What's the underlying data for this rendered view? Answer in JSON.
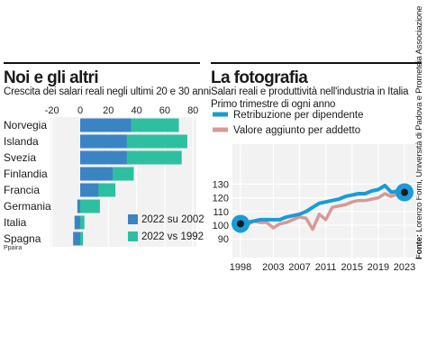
{
  "left_panel": {
    "title": "Noi e gli altri",
    "subtitle": "Crescita dei salari reali negli ultimi 20 e 30 anni",
    "credit": "Ppaira"
  },
  "right_panel": {
    "title": "La fotografia",
    "subtitle_line1": "Salari reali e produttività nell'industria in Italia",
    "subtitle_line2": "Primo trimestre di ogni anno",
    "source_label": "Fonte:",
    "source_text": " Lorenzo Forni, Università di Padova e Prometeia Associazione"
  },
  "colors": {
    "bar_20y": "#3a84c4",
    "bar_30y": "#2ebfa0",
    "wages_line": "#1a9bd7",
    "productivity_line": "#d89898",
    "panel_bg": "#f2f2f2",
    "grid": "#ffffff",
    "marker_fill": "#1a1a1a"
  },
  "chart_data": [
    {
      "type": "bar",
      "orientation": "horizontal",
      "categories": [
        "Norvegia",
        "Islanda",
        "Svezia",
        "Finlandia",
        "Francia",
        "Germania",
        "Italia",
        "Spagna"
      ],
      "series": [
        {
          "name": "2022 su 2002",
          "values": [
            36,
            33,
            33,
            23,
            13,
            -2,
            -4,
            -5
          ]
        },
        {
          "name": "2022 vs 1992",
          "values": [
            70,
            76,
            72,
            38,
            25,
            14,
            3,
            2
          ]
        }
      ],
      "xlim": [
        -20,
        80
      ],
      "xticks": [
        "-20",
        "0",
        "20",
        "40",
        "60",
        "80"
      ],
      "legend_position": "bottom-right",
      "grid": true
    },
    {
      "type": "line",
      "x": [
        1998,
        1999,
        2000,
        2001,
        2002,
        2003,
        2004,
        2005,
        2006,
        2007,
        2008,
        2009,
        2010,
        2011,
        2012,
        2013,
        2014,
        2015,
        2016,
        2017,
        2018,
        2019,
        2020,
        2021,
        2022,
        2023
      ],
      "series": [
        {
          "name": "Retribuzione per dipendente",
          "values": [
            101,
            102,
            103,
            104,
            104,
            104,
            104,
            106,
            107,
            108,
            110,
            113,
            116,
            117,
            118,
            119,
            121,
            122,
            123,
            123,
            125,
            126,
            129,
            124,
            125,
            124
          ]
        },
        {
          "name": "Valore aggiunto per addetto",
          "values": [
            101,
            100,
            103,
            102,
            102,
            98,
            101,
            102,
            104,
            106,
            105,
            97,
            108,
            104,
            113,
            114,
            115,
            117,
            118,
            118,
            119,
            120,
            123,
            121,
            123,
            123
          ]
        }
      ],
      "ylim": [
        90,
        130
      ],
      "yticks": [
        "90",
        "100",
        "110",
        "120",
        "130"
      ],
      "xticks": [
        "1998",
        "2003",
        "2007",
        "2011",
        "2015",
        "2019",
        "2023"
      ],
      "legend_position": "top",
      "grid": true
    }
  ]
}
